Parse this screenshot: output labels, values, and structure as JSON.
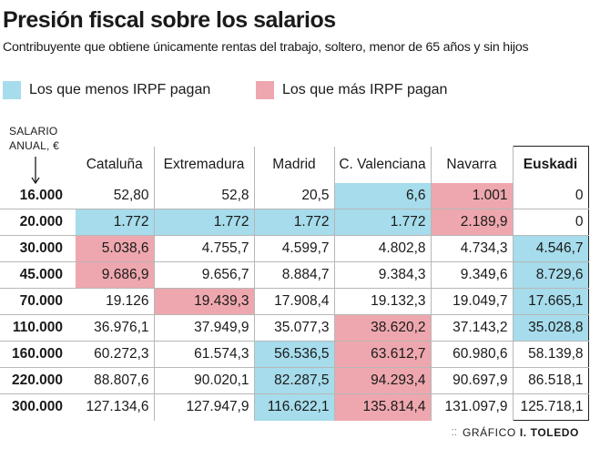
{
  "title": "Presión fiscal sobre los salarios",
  "subtitle": "Contribuyente que obtiene únicamente rentas del trabajo, soltero, menor de 65 años y sin hijos",
  "legend": {
    "low": {
      "label": "Los que menos IRPF pagan",
      "color": "#a6dceb"
    },
    "high": {
      "label": "Los que más IRPF pagan",
      "color": "#eea7ae"
    }
  },
  "row_header": {
    "line1": "SALARIO",
    "line2": "ANUAL, €"
  },
  "columns": [
    "Cataluña",
    "Extremadura",
    "Madrid",
    "C. Valenciana",
    "Navarra",
    "Euskadi"
  ],
  "rows": [
    {
      "salary": "16.000",
      "values": [
        "52,80",
        "52,8",
        "20,5",
        "6,6",
        "1.001",
        "0"
      ]
    },
    {
      "salary": "20.000",
      "values": [
        "1.772",
        "1.772",
        "1.772",
        "1.772",
        "2.189,9",
        "0"
      ]
    },
    {
      "salary": "30.000",
      "values": [
        "5.038,6",
        "4.755,7",
        "4.599,7",
        "4.802,8",
        "4.734,3",
        "4.546,7"
      ]
    },
    {
      "salary": "45.000",
      "values": [
        "9.686,9",
        "9.656,7",
        "8.884,7",
        "9.384,3",
        "9.349,6",
        "8.729,6"
      ]
    },
    {
      "salary": "70.000",
      "values": [
        "19.126",
        "19.439,3",
        "17.908,4",
        "19.132,3",
        "19.049,7",
        "17.665,1"
      ]
    },
    {
      "salary": "110.000",
      "values": [
        "36.976,1",
        "37.949,9",
        "35.077,3",
        "38.620,2",
        "37.143,2",
        "35.028,8"
      ]
    },
    {
      "salary": "160.000",
      "values": [
        "60.272,3",
        "61.574,3",
        "56.536,5",
        "63.612,7",
        "60.980,6",
        "58.139,8"
      ]
    },
    {
      "salary": "220.000",
      "values": [
        "88.807,6",
        "90.020,1",
        "82.287,5",
        "94.293,4",
        "90.697,9",
        "86.518,1"
      ]
    },
    {
      "salary": "300.000",
      "values": [
        "127.134,6",
        "127.947,9",
        "116.622,1",
        "135.814,4",
        "131.097,9",
        "125.718,1"
      ]
    }
  ],
  "highlights": {
    "low": [
      [
        0,
        3
      ],
      [
        1,
        0
      ],
      [
        1,
        1
      ],
      [
        1,
        2
      ],
      [
        1,
        3
      ],
      [
        2,
        5
      ],
      [
        3,
        5
      ],
      [
        4,
        5
      ],
      [
        5,
        5
      ],
      [
        6,
        2
      ],
      [
        7,
        2
      ],
      [
        8,
        2
      ]
    ],
    "high": [
      [
        0,
        4
      ],
      [
        1,
        4
      ],
      [
        2,
        0
      ],
      [
        3,
        0
      ],
      [
        4,
        1
      ],
      [
        5,
        3
      ],
      [
        6,
        3
      ],
      [
        7,
        3
      ],
      [
        8,
        3
      ]
    ]
  },
  "credit": {
    "prefix": "GRÁFICO",
    "author": "I. TOLEDO"
  }
}
